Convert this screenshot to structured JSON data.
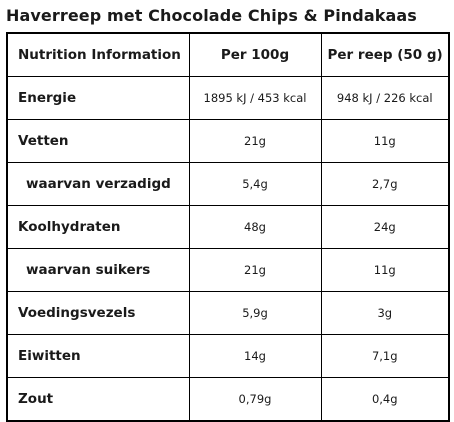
{
  "title": "Haverreep met Chocolade Chips & Pindakaas",
  "table": {
    "headers": [
      "Nutrition Information",
      "Per 100g",
      "Per reep (50 g)"
    ],
    "rows": [
      {
        "label": "Energie",
        "per100": "1895 kJ / 453 kcal",
        "perBar": "948 kJ / 226 kcal"
      },
      {
        "label": "Vetten",
        "per100": "21g",
        "perBar": "11g"
      },
      {
        "label": "waarvan verzadigd",
        "per100": "5,4g",
        "perBar": "2,7g"
      },
      {
        "label": "Koolhydraten",
        "per100": "48g",
        "perBar": "24g"
      },
      {
        "label": "waarvan suikers",
        "per100": "21g",
        "perBar": "11g"
      },
      {
        "label": "Voedingsvezels",
        "per100": "5,9g",
        "perBar": "3g"
      },
      {
        "label": "Eiwitten",
        "per100": "14g",
        "perBar": "7,1g"
      },
      {
        "label": "Zout",
        "per100": "0,79g",
        "perBar": "0,4g"
      }
    ]
  }
}
